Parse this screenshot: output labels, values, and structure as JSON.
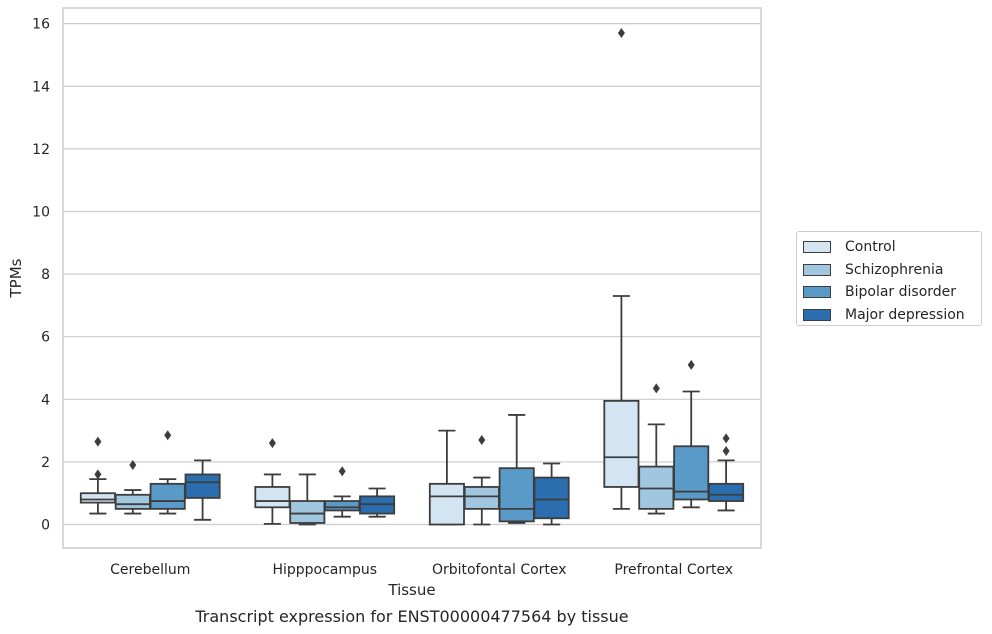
{
  "chart_data": {
    "type": "box",
    "ylabel": "TPMs",
    "xlabel": "Tissue",
    "caption": "Transcript expression for ENST00000477564 by tissue",
    "ylim": [
      -0.75,
      16.5
    ],
    "yticks": [
      0,
      2,
      4,
      6,
      8,
      10,
      12,
      14,
      16
    ],
    "grid": "horizontal",
    "legend_position": "right",
    "categories": [
      "Cerebellum",
      "Hipppocampus",
      "Orbitofontal Cortex",
      "Prefrontal Cortex"
    ],
    "series": [
      {
        "name": "Control",
        "color": "#d3e4f3",
        "boxes": [
          {
            "low": 0.35,
            "q1": 0.7,
            "median": 0.8,
            "q3": 1.0,
            "high": 1.45,
            "outliers": [
              1.6,
              2.65
            ]
          },
          {
            "low": 0.02,
            "q1": 0.55,
            "median": 0.75,
            "q3": 1.2,
            "high": 1.6,
            "outliers": [
              2.6
            ]
          },
          {
            "low": 0.0,
            "q1": 0.0,
            "median": 0.9,
            "q3": 1.3,
            "high": 3.0,
            "outliers": []
          },
          {
            "low": 0.5,
            "q1": 1.2,
            "median": 2.15,
            "q3": 3.95,
            "high": 7.3,
            "outliers": [
              15.7
            ]
          }
        ]
      },
      {
        "name": "Schizophrenia",
        "color": "#a0c6e0",
        "boxes": [
          {
            "low": 0.35,
            "q1": 0.5,
            "median": 0.65,
            "q3": 0.95,
            "high": 1.1,
            "outliers": [
              1.9
            ]
          },
          {
            "low": 0.0,
            "q1": 0.05,
            "median": 0.35,
            "q3": 0.75,
            "high": 1.6,
            "outliers": []
          },
          {
            "low": 0.0,
            "q1": 0.5,
            "median": 0.9,
            "q3": 1.2,
            "high": 1.5,
            "outliers": [
              2.7
            ]
          },
          {
            "low": 0.35,
            "q1": 0.5,
            "median": 1.15,
            "q3": 1.85,
            "high": 3.2,
            "outliers": [
              4.35
            ]
          }
        ]
      },
      {
        "name": "Bipolar disorder",
        "color": "#5a9ac9",
        "boxes": [
          {
            "low": 0.35,
            "q1": 0.5,
            "median": 0.75,
            "q3": 1.3,
            "high": 1.45,
            "outliers": [
              2.85
            ]
          },
          {
            "low": 0.25,
            "q1": 0.45,
            "median": 0.55,
            "q3": 0.75,
            "high": 0.9,
            "outliers": [
              1.7
            ]
          },
          {
            "low": 0.05,
            "q1": 0.1,
            "median": 0.5,
            "q3": 1.8,
            "high": 3.5,
            "outliers": []
          },
          {
            "low": 0.55,
            "q1": 0.8,
            "median": 1.05,
            "q3": 2.5,
            "high": 4.25,
            "outliers": [
              5.1
            ]
          }
        ]
      },
      {
        "name": "Major depression",
        "color": "#2b6eb0",
        "boxes": [
          {
            "low": 0.15,
            "q1": 0.85,
            "median": 1.35,
            "q3": 1.6,
            "high": 2.05,
            "outliers": []
          },
          {
            "low": 0.25,
            "q1": 0.35,
            "median": 0.65,
            "q3": 0.9,
            "high": 1.15,
            "outliers": []
          },
          {
            "low": 0.0,
            "q1": 0.2,
            "median": 0.8,
            "q3": 1.5,
            "high": 1.95,
            "outliers": []
          },
          {
            "low": 0.45,
            "q1": 0.75,
            "median": 0.95,
            "q3": 1.3,
            "high": 2.05,
            "outliers": [
              2.35,
              2.75
            ]
          }
        ]
      }
    ]
  }
}
